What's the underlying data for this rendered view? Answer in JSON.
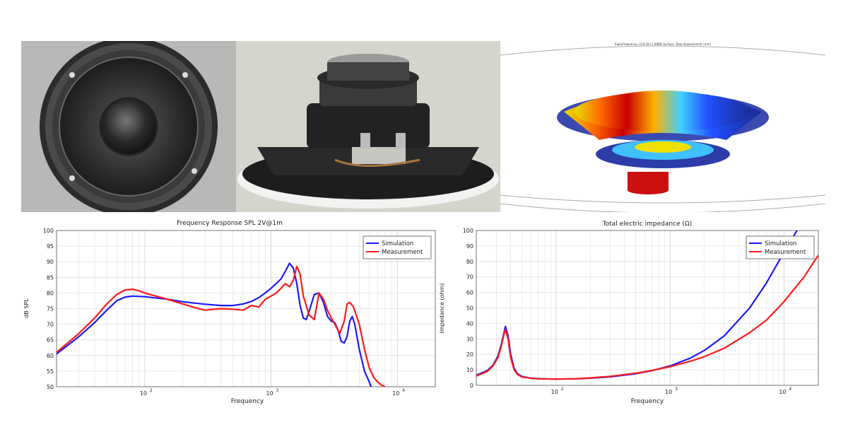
{
  "panels": {
    "simulation_caption": "Eigenfrequency=119.26+7.0969i   Surface: Total displacement (mm)"
  },
  "chart_data": [
    {
      "type": "line",
      "title": "Frequency Response SPL 2V@1m",
      "xlabel": "Frequency",
      "ylabel": "dB SPL",
      "xscale": "log",
      "xlim": [
        20,
        20000
      ],
      "ylim": [
        50,
        100
      ],
      "yticks": [
        50,
        55,
        60,
        65,
        70,
        75,
        80,
        85,
        90,
        95,
        100
      ],
      "xticks": [
        {
          "value": 100,
          "base": "10",
          "exp": "2"
        },
        {
          "value": 1000,
          "base": "10",
          "exp": "3"
        },
        {
          "value": 10000,
          "base": "10",
          "exp": "4"
        }
      ],
      "grid": true,
      "legend_position": "top-right",
      "series": [
        {
          "name": "Simulation",
          "color": "#1a1aff",
          "x": [
            20,
            30,
            40,
            50,
            60,
            70,
            80,
            100,
            150,
            200,
            300,
            400,
            500,
            600,
            700,
            800,
            900,
            1000,
            1100,
            1200,
            1300,
            1400,
            1500,
            1600,
            1700,
            1800,
            1900,
            2000,
            2200,
            2400,
            2600,
            2800,
            3000,
            3200,
            3400,
            3600,
            3800,
            4000,
            4200,
            4400,
            4600,
            5000,
            5500,
            6000,
            6200
          ],
          "y": [
            60.5,
            66.0,
            70.5,
            74.5,
            77.5,
            78.7,
            79.0,
            78.8,
            78.0,
            77.2,
            76.4,
            76.0,
            76.0,
            76.5,
            77.3,
            78.5,
            80.0,
            81.5,
            83.0,
            84.5,
            87.0,
            89.5,
            88.0,
            83.0,
            76.0,
            72.0,
            71.5,
            74.0,
            79.5,
            80.0,
            77.0,
            72.5,
            71.0,
            70.5,
            68.0,
            64.5,
            64.0,
            66.0,
            71.0,
            72.5,
            70.0,
            62.0,
            55.0,
            51.5,
            50.0
          ]
        },
        {
          "name": "Measurement",
          "color": "#ff1a1a",
          "x": [
            20,
            30,
            40,
            50,
            60,
            70,
            80,
            90,
            100,
            150,
            200,
            250,
            300,
            400,
            500,
            600,
            700,
            800,
            900,
            1000,
            1100,
            1200,
            1300,
            1400,
            1500,
            1600,
            1700,
            1800,
            1900,
            2000,
            2200,
            2400,
            2600,
            2800,
            3000,
            3200,
            3500,
            3800,
            4000,
            4200,
            4500,
            5000,
            5500,
            6000,
            6500,
            7000,
            7500,
            8000
          ],
          "y": [
            61.0,
            67.0,
            72.0,
            76.5,
            79.5,
            81.0,
            81.2,
            80.7,
            80.0,
            78.0,
            76.5,
            75.3,
            74.5,
            75.0,
            74.8,
            74.5,
            76.0,
            75.5,
            78.0,
            79.0,
            80.0,
            81.5,
            83.0,
            82.0,
            84.0,
            88.5,
            86.0,
            79.0,
            76.0,
            73.0,
            71.5,
            80.0,
            78.0,
            74.5,
            72.0,
            70.0,
            67.0,
            71.0,
            76.5,
            77.0,
            75.5,
            70.0,
            62.0,
            56.0,
            53.0,
            51.5,
            50.5,
            50.0
          ]
        }
      ]
    },
    {
      "type": "line",
      "title": "Total electric impedance  (Ω)",
      "xlabel": "Frequency",
      "ylabel": "Impedance (ohm)",
      "xscale": "log",
      "xlim": [
        20,
        20000
      ],
      "ylim": [
        0,
        100
      ],
      "yticks": [
        0,
        10,
        20,
        30,
        40,
        50,
        60,
        70,
        80,
        90,
        100
      ],
      "xticks": [
        {
          "value": 100,
          "base": "10",
          "exp": "2"
        },
        {
          "value": 1000,
          "base": "10",
          "exp": "3"
        },
        {
          "value": 10000,
          "base": "10",
          "exp": "4"
        }
      ],
      "grid": true,
      "legend_position": "top-right",
      "series": [
        {
          "name": "Simulation",
          "color": "#1a1aff",
          "x": [
            20,
            25,
            28,
            31,
            33,
            35,
            36,
            38,
            40,
            43,
            46,
            50,
            60,
            70,
            100,
            150,
            200,
            300,
            500,
            700,
            1000,
            1500,
            2000,
            3000,
            5000,
            7000,
            10000,
            13000
          ],
          "y": [
            6.5,
            9.5,
            13.0,
            19.0,
            26.0,
            34.0,
            38.0,
            32.0,
            20.0,
            11.0,
            7.5,
            5.8,
            4.6,
            4.3,
            4.0,
            4.2,
            4.6,
            5.5,
            7.5,
            9.5,
            12.5,
            17.5,
            22.5,
            32.0,
            50.0,
            66.0,
            86.0,
            100.0
          ]
        },
        {
          "name": "Measurement",
          "color": "#ff1a1a",
          "x": [
            20,
            25,
            28,
            31,
            33,
            35,
            36,
            38,
            40,
            43,
            46,
            50,
            60,
            70,
            100,
            150,
            200,
            300,
            500,
            700,
            1000,
            1500,
            2000,
            3000,
            5000,
            7000,
            10000,
            15000,
            20000
          ],
          "y": [
            6.0,
            9.0,
            12.5,
            18.0,
            25.0,
            33.0,
            36.0,
            30.0,
            18.0,
            10.0,
            7.0,
            5.5,
            4.5,
            4.2,
            4.0,
            4.3,
            4.8,
            5.8,
            7.8,
            9.7,
            12.0,
            15.5,
            18.5,
            24.0,
            34.0,
            42.0,
            54.0,
            70.0,
            84.0
          ]
        }
      ]
    }
  ]
}
